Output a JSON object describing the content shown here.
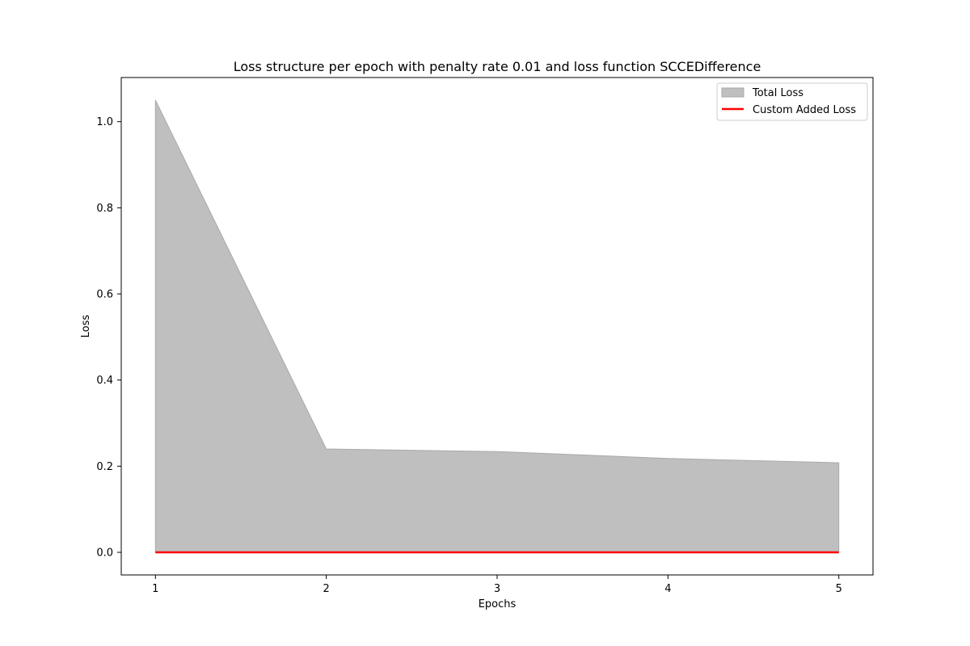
{
  "chart_data": {
    "type": "area",
    "title": "Loss structure per epoch with penalty rate 0.01 and loss function SCCEDifference",
    "xlabel": "Epochs",
    "ylabel": "Loss",
    "x": [
      1,
      2,
      3,
      4,
      5
    ],
    "xticks": [
      "1",
      "2",
      "3",
      "4",
      "5"
    ],
    "xlim": [
      0.8,
      5.2
    ],
    "ylim": [
      -0.0525,
      1.1025
    ],
    "yticks": [
      "0.0",
      "0.2",
      "0.4",
      "0.6",
      "0.8",
      "1.0"
    ],
    "grid": false,
    "legend_position": "top-right",
    "series": [
      {
        "name": "Total Loss",
        "kind": "area",
        "values": [
          1.05,
          0.24,
          0.234,
          0.218,
          0.208
        ],
        "color": "#bfbfbf"
      },
      {
        "name": "Custom Added Loss",
        "kind": "line",
        "values": [
          0.0,
          0.0,
          0.0,
          0.0,
          0.0
        ],
        "color": "#ff0000"
      }
    ]
  }
}
